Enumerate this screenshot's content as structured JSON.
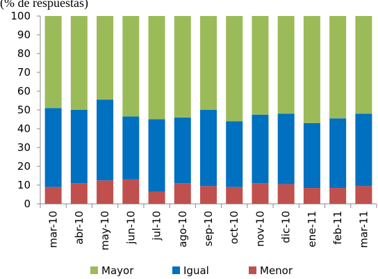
{
  "chart_data": {
    "type": "stacked_bar",
    "title": "(% de respuestas)",
    "categories": [
      "mar-10",
      "abr-10",
      "may-10",
      "jun-10",
      "jul-10",
      "ago-10",
      "sep-10",
      "oct-10",
      "nov-10",
      "dic-10",
      "ene-11",
      "feb-11",
      "mar-11"
    ],
    "series": [
      {
        "name": "Menor",
        "color": "#c0504d",
        "values": [
          9,
          11,
          12.5,
          13,
          6.5,
          11,
          9.5,
          9,
          11,
          10.5,
          8.5,
          8.5,
          9.5
        ]
      },
      {
        "name": "Igual",
        "color": "#0070c0",
        "values": [
          42,
          39,
          43,
          33.5,
          38.5,
          35,
          40.5,
          35,
          36.5,
          37.5,
          34.5,
          37,
          38.5
        ]
      },
      {
        "name": "Mayor",
        "color": "#9bbb59",
        "values": [
          49,
          50,
          44.5,
          53.5,
          55,
          54,
          50,
          56,
          52.5,
          52,
          57,
          54.5,
          52
        ]
      }
    ],
    "ylim": [
      0,
      100
    ],
    "yticks": [
      0,
      10,
      20,
      30,
      40,
      50,
      60,
      70,
      80,
      90,
      100
    ],
    "legend_order": [
      "Mayor",
      "Igual",
      "Menor"
    ]
  }
}
